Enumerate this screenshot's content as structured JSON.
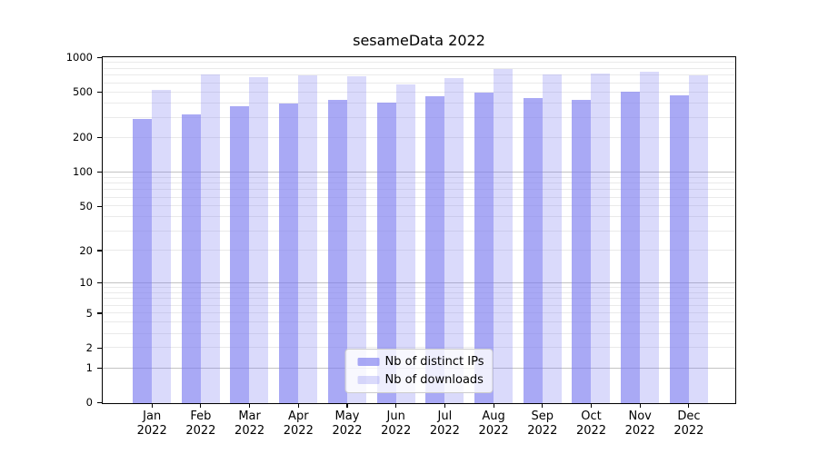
{
  "title": "sesameData 2022",
  "chart_data": {
    "type": "bar",
    "title": "sesameData 2022",
    "months": [
      "Jan",
      "Feb",
      "Mar",
      "Apr",
      "May",
      "Jun",
      "Jul",
      "Aug",
      "Sep",
      "Oct",
      "Nov",
      "Dec"
    ],
    "year": "2022",
    "series": [
      {
        "name": "Nb of distinct IPs",
        "color": "rgba(123,123,240,0.65)",
        "values": [
          293,
          321,
          379,
          401,
          431,
          409,
          464,
          498,
          447,
          431,
          508,
          472
        ]
      },
      {
        "name": "Nb of downloads",
        "color": "rgba(123,123,240,0.28)",
        "values": [
          525,
          719,
          681,
          706,
          694,
          588,
          669,
          801,
          719,
          732,
          760,
          706
        ]
      }
    ],
    "yscale": "symlog",
    "yscale_note": "position proportional to log10(1+value)",
    "yticks": [
      0,
      1,
      2,
      5,
      10,
      20,
      50,
      100,
      200,
      500,
      1000
    ],
    "ylim": [
      0,
      1000
    ],
    "grid": true,
    "legend_position": "lower center",
    "colors": {
      "major_gridline": "#c3c3c3",
      "minor_gridline": "#eaeaea",
      "axis": "#000000",
      "legend_border": "#cccccc"
    }
  }
}
